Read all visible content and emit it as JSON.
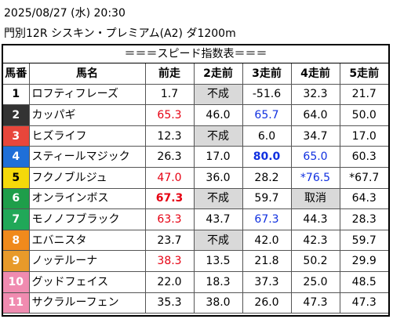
{
  "header": {
    "line1": "2025/08/27 (水) 20:30",
    "line2": "門別12R シスキン・プレミアム(A2) ダ1200m"
  },
  "banner": "＝＝＝スピード指数表＝＝＝",
  "columns": [
    "馬番",
    "馬名",
    "前走",
    "2走前",
    "3走前",
    "4走前",
    "5走前"
  ],
  "colors": {
    "bg1": "#ffffff",
    "bg2": "#333333",
    "bg3": "#e8463b",
    "bg4": "#1f6fd8",
    "bg5": "#f5d90a",
    "bg6": "#1e9e4a",
    "bg7": "#20a858",
    "bg8": "#f08a1c",
    "bg9": "#e89a2a",
    "bg10": "#f08bb0",
    "bg11": "#f08bb0"
  },
  "rows": [
    {
      "num": "1",
      "name": "ロフティフレーズ",
      "c": [
        {
          "v": "1.7"
        },
        {
          "v": "不成",
          "g": 1
        },
        {
          "v": "-51.6"
        },
        {
          "v": "32.3"
        },
        {
          "v": "21.7"
        }
      ]
    },
    {
      "num": "2",
      "name": "カッパギ",
      "c": [
        {
          "v": "65.3",
          "s": "red"
        },
        {
          "v": "46.0"
        },
        {
          "v": "65.7",
          "s": "blue"
        },
        {
          "v": "64.0"
        },
        {
          "v": "50.0"
        }
      ]
    },
    {
      "num": "3",
      "name": "ヒズライフ",
      "c": [
        {
          "v": "12.3"
        },
        {
          "v": "不成",
          "g": 1
        },
        {
          "v": "6.0"
        },
        {
          "v": "34.7"
        },
        {
          "v": "17.0"
        }
      ]
    },
    {
      "num": "4",
      "name": "スティールマジック",
      "c": [
        {
          "v": "26.3"
        },
        {
          "v": "17.0"
        },
        {
          "v": "80.0",
          "s": "blue bold"
        },
        {
          "v": "65.0",
          "s": "blue"
        },
        {
          "v": "60.3"
        }
      ]
    },
    {
      "num": "5",
      "name": "フクノブルジュ",
      "c": [
        {
          "v": "47.0",
          "s": "red"
        },
        {
          "v": "36.0"
        },
        {
          "v": "28.2"
        },
        {
          "v": "*76.5",
          "s": "blue"
        },
        {
          "v": "*67.7"
        }
      ]
    },
    {
      "num": "6",
      "name": "オンラインボス",
      "c": [
        {
          "v": "67.3",
          "s": "red bold"
        },
        {
          "v": "不成",
          "g": 1
        },
        {
          "v": "59.7"
        },
        {
          "v": "取消",
          "g": 1
        },
        {
          "v": "64.3"
        }
      ]
    },
    {
      "num": "7",
      "name": "モノノフブラック",
      "c": [
        {
          "v": "63.3",
          "s": "red"
        },
        {
          "v": "43.7"
        },
        {
          "v": "67.3",
          "s": "blue"
        },
        {
          "v": "44.3"
        },
        {
          "v": "28.3"
        }
      ]
    },
    {
      "num": "8",
      "name": "エバニスタ",
      "c": [
        {
          "v": "23.7"
        },
        {
          "v": "不成",
          "g": 1
        },
        {
          "v": "42.0"
        },
        {
          "v": "42.3"
        },
        {
          "v": "59.7"
        }
      ]
    },
    {
      "num": "9",
      "name": "ノッテルーナ",
      "c": [
        {
          "v": "38.3",
          "s": "red"
        },
        {
          "v": "13.5"
        },
        {
          "v": "21.8"
        },
        {
          "v": "50.2"
        },
        {
          "v": "29.9"
        }
      ]
    },
    {
      "num": "10",
      "name": "グッドフェイス",
      "c": [
        {
          "v": "22.0"
        },
        {
          "v": "18.3"
        },
        {
          "v": "37.3"
        },
        {
          "v": "25.0"
        },
        {
          "v": "48.5"
        }
      ]
    },
    {
      "num": "11",
      "name": "サクラルーフェン",
      "c": [
        {
          "v": "35.3"
        },
        {
          "v": "38.0"
        },
        {
          "v": "26.0"
        },
        {
          "v": "47.3"
        },
        {
          "v": "47.3"
        }
      ]
    }
  ]
}
